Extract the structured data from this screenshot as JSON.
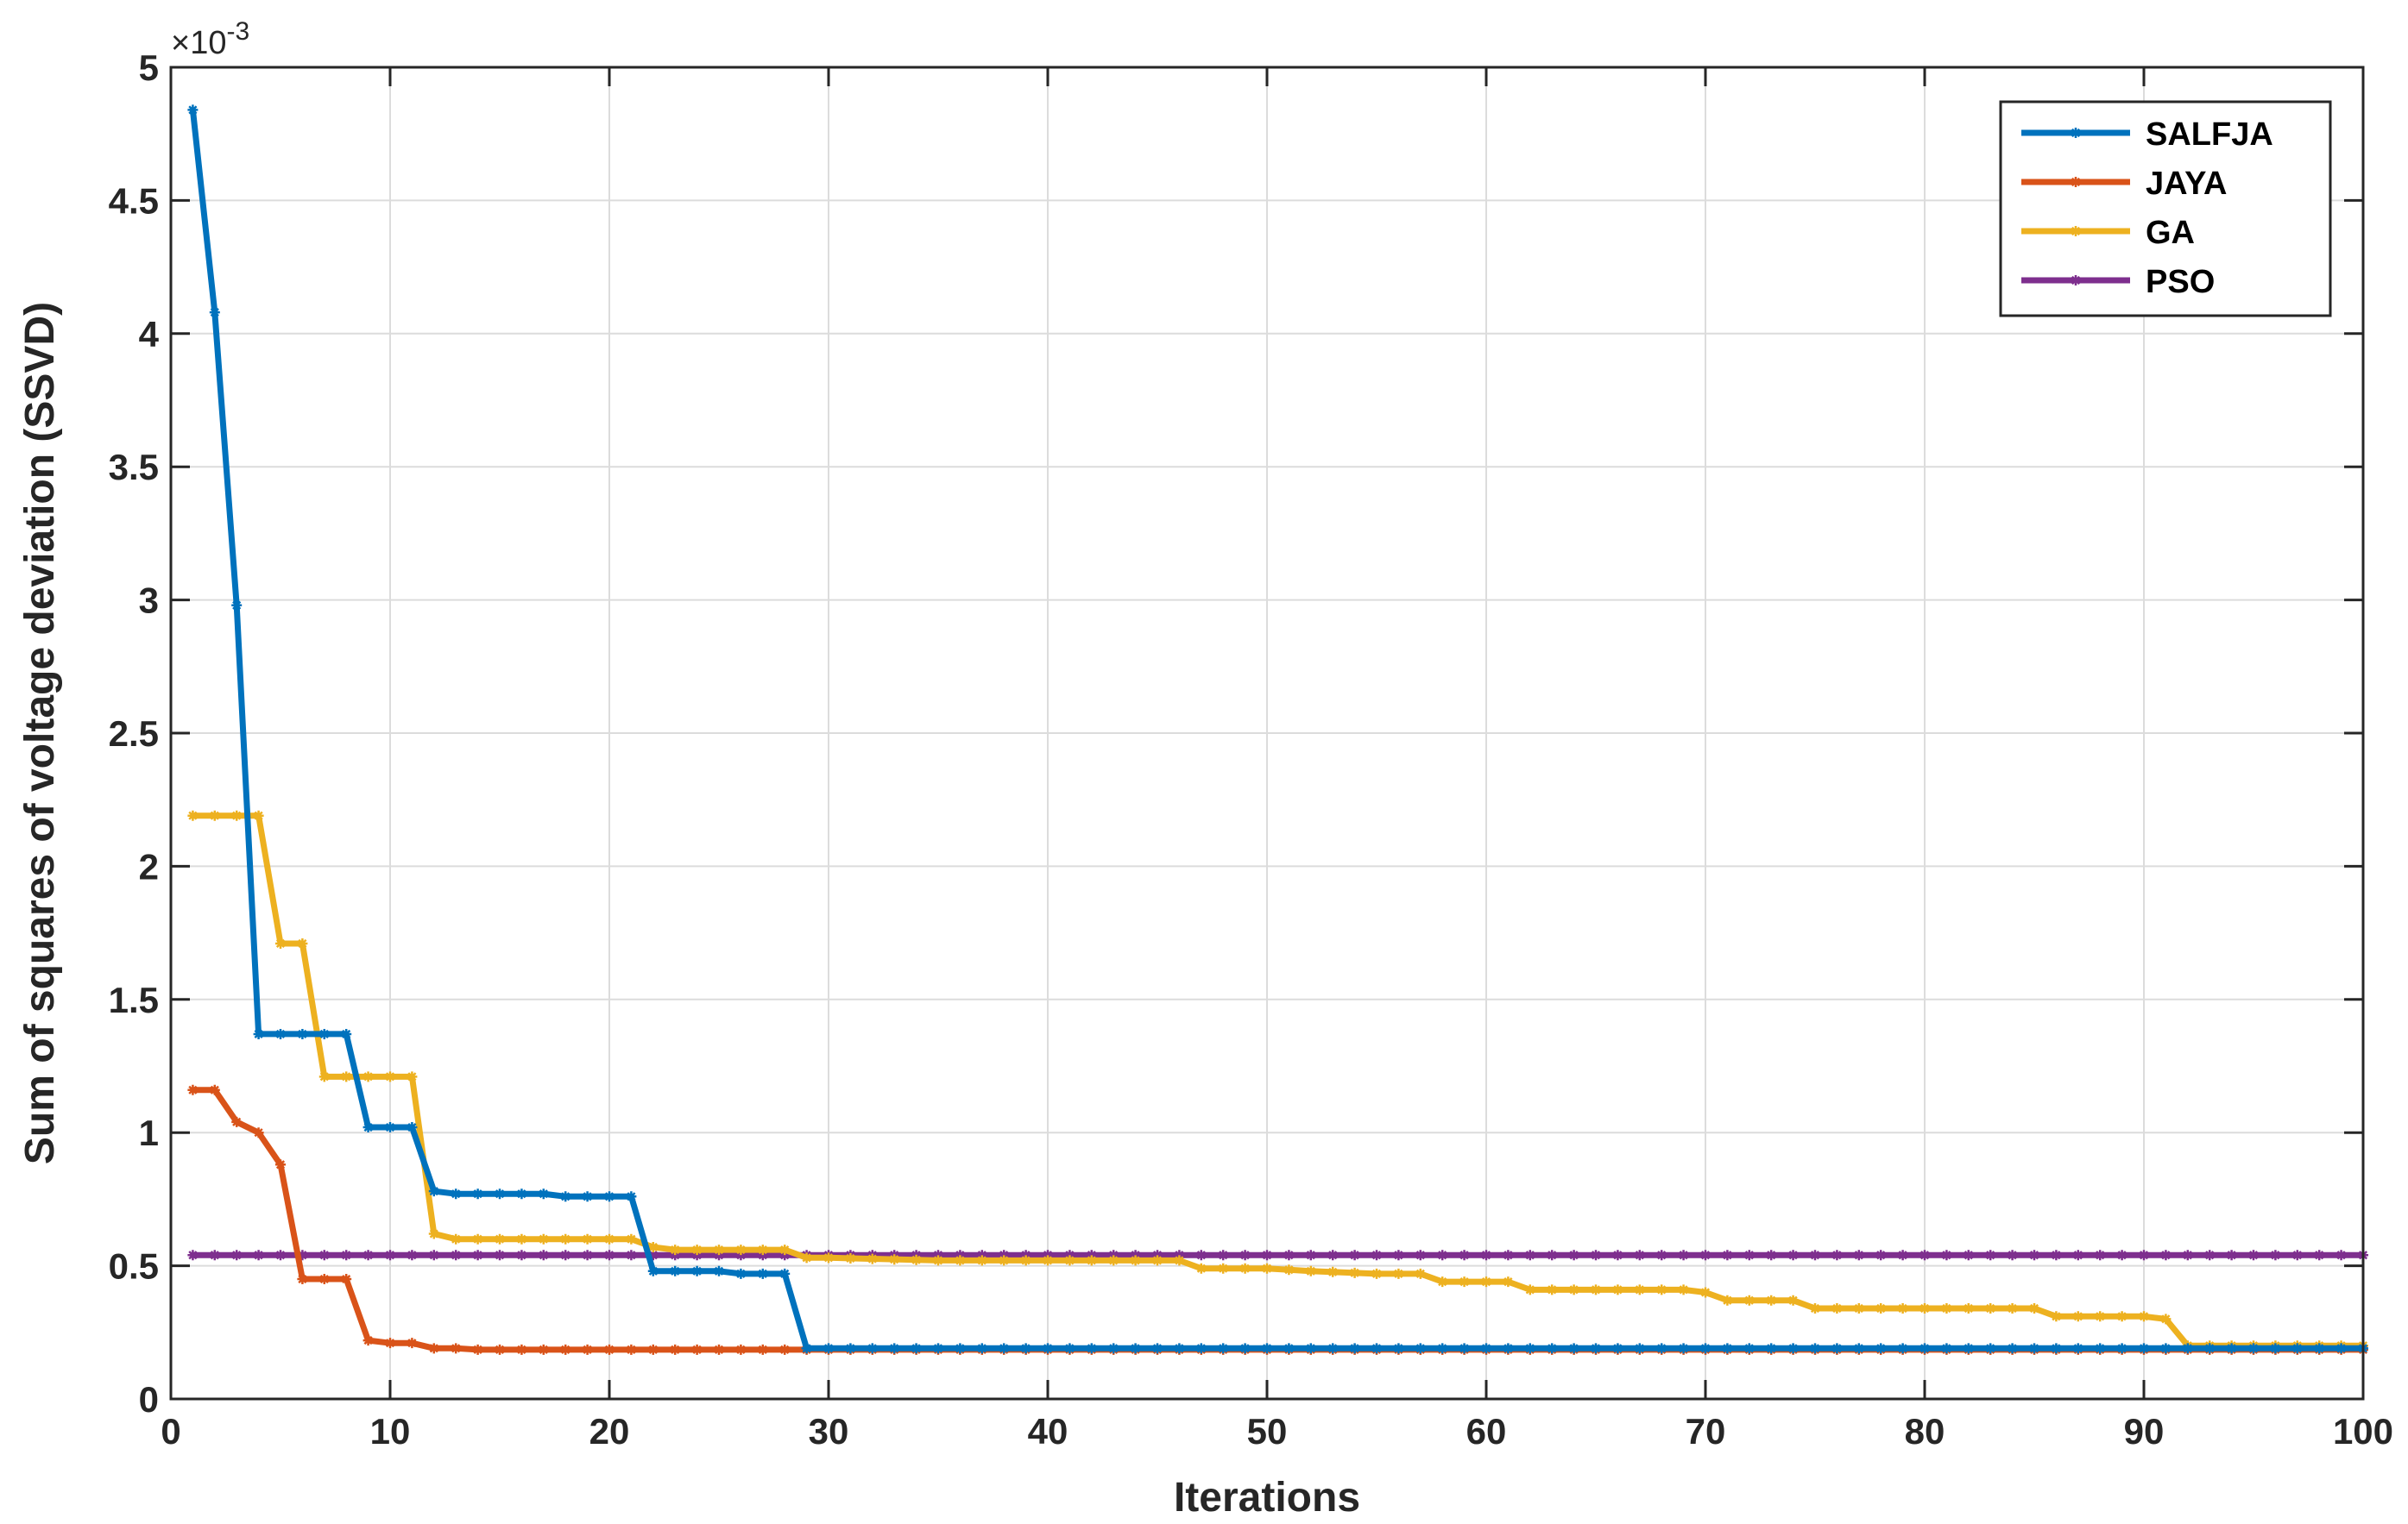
{
  "chart_data": {
    "type": "line",
    "title": "",
    "xlabel": "Iterations",
    "ylabel": "Sum of squares of voltage deviation (SSVD)",
    "y_multiplier_label": "×10",
    "y_multiplier_exponent": "-3",
    "xlim": [
      0,
      100
    ],
    "ylim": [
      0,
      5
    ],
    "xticks": [
      "0",
      "10",
      "20",
      "30",
      "40",
      "50",
      "60",
      "70",
      "80",
      "90",
      "100"
    ],
    "yticks": [
      "0",
      "0.5",
      "1",
      "1.5",
      "2",
      "2.5",
      "3",
      "3.5",
      "4",
      "4.5",
      "5"
    ],
    "grid": true,
    "legend_position": "top-right",
    "series": [
      {
        "name": "SALFJA",
        "color": "#0072BD",
        "points": [
          [
            1,
            4.84
          ],
          [
            2,
            4.08
          ],
          [
            3,
            2.98
          ],
          [
            4,
            1.37
          ],
          [
            5,
            1.37
          ],
          [
            6,
            1.37
          ],
          [
            7,
            1.37
          ],
          [
            8,
            1.37
          ],
          [
            9,
            1.02
          ],
          [
            10,
            1.02
          ],
          [
            11,
            1.02
          ],
          [
            12,
            0.78
          ],
          [
            13,
            0.77
          ],
          [
            14,
            0.77
          ],
          [
            15,
            0.77
          ],
          [
            16,
            0.77
          ],
          [
            17,
            0.77
          ],
          [
            18,
            0.76
          ],
          [
            19,
            0.76
          ],
          [
            20,
            0.76
          ],
          [
            21,
            0.76
          ],
          [
            22,
            0.48
          ],
          [
            23,
            0.48
          ],
          [
            24,
            0.48
          ],
          [
            25,
            0.48
          ],
          [
            26,
            0.47
          ],
          [
            27,
            0.47
          ],
          [
            28,
            0.47
          ],
          [
            29,
            0.19
          ],
          [
            100,
            0.19
          ]
        ]
      },
      {
        "name": "JAYA",
        "color": "#D95319",
        "points": [
          [
            1,
            1.16
          ],
          [
            2,
            1.16
          ],
          [
            3,
            1.04
          ],
          [
            4,
            1.0
          ],
          [
            5,
            0.88
          ],
          [
            6,
            0.45
          ],
          [
            7,
            0.45
          ],
          [
            8,
            0.45
          ],
          [
            9,
            0.22
          ],
          [
            10,
            0.21
          ],
          [
            11,
            0.21
          ],
          [
            12,
            0.19
          ],
          [
            13,
            0.19
          ],
          [
            14,
            0.185
          ],
          [
            100,
            0.185
          ]
        ]
      },
      {
        "name": "GA",
        "color": "#EDB120",
        "points": [
          [
            1,
            2.19
          ],
          [
            2,
            2.19
          ],
          [
            3,
            2.19
          ],
          [
            4,
            2.19
          ],
          [
            5,
            1.71
          ],
          [
            6,
            1.71
          ],
          [
            7,
            1.21
          ],
          [
            8,
            1.21
          ],
          [
            9,
            1.21
          ],
          [
            10,
            1.21
          ],
          [
            11,
            1.21
          ],
          [
            12,
            0.62
          ],
          [
            13,
            0.6
          ],
          [
            14,
            0.6
          ],
          [
            15,
            0.6
          ],
          [
            16,
            0.6
          ],
          [
            17,
            0.6
          ],
          [
            18,
            0.6
          ],
          [
            19,
            0.6
          ],
          [
            20,
            0.6
          ],
          [
            21,
            0.6
          ],
          [
            22,
            0.57
          ],
          [
            23,
            0.56
          ],
          [
            24,
            0.56
          ],
          [
            25,
            0.56
          ],
          [
            26,
            0.56
          ],
          [
            27,
            0.56
          ],
          [
            28,
            0.56
          ],
          [
            29,
            0.53
          ],
          [
            30,
            0.53
          ],
          [
            35,
            0.52
          ],
          [
            40,
            0.52
          ],
          [
            46,
            0.52
          ],
          [
            47,
            0.49
          ],
          [
            50,
            0.49
          ],
          [
            52,
            0.48
          ],
          [
            55,
            0.47
          ],
          [
            57,
            0.47
          ],
          [
            58,
            0.44
          ],
          [
            61,
            0.44
          ],
          [
            62,
            0.41
          ],
          [
            69,
            0.41
          ],
          [
            70,
            0.4
          ],
          [
            71,
            0.37
          ],
          [
            74,
            0.37
          ],
          [
            75,
            0.34
          ],
          [
            85,
            0.34
          ],
          [
            86,
            0.31
          ],
          [
            90,
            0.31
          ],
          [
            91,
            0.3
          ],
          [
            92,
            0.2
          ],
          [
            100,
            0.2
          ]
        ]
      },
      {
        "name": "PSO",
        "color": "#7E2F8E",
        "points": [
          [
            1,
            0.54
          ],
          [
            100,
            0.54
          ]
        ]
      }
    ]
  }
}
